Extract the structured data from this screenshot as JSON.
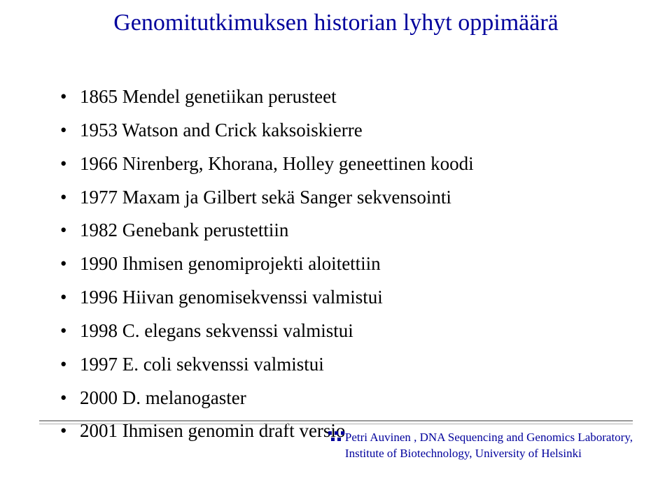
{
  "title": "Genomitutkimuksen historian lyhyt oppimäärä",
  "bullets": [
    "1865 Mendel genetiikan perusteet",
    "1953 Watson and Crick kaksoiskierre",
    "1966 Nirenberg, Khorana, Holley geneettinen koodi",
    "1977 Maxam ja Gilbert sekä Sanger sekvensointi",
    "1982 Genebank perustettiin",
    "1990 Ihmisen genomiprojekti aloitettiin",
    "1996 Hiivan genomisekvenssi valmistui",
    "1998 C. elegans sekvenssi valmistui",
    "1997 E. coli sekvenssi valmistui",
    "2000 D. melanogaster",
    "2001 Ihmisen genomin draft versio"
  ],
  "footer": {
    "line1": "Petri Auvinen , DNA Sequencing and Genomics Laboratory,",
    "line2": "Institute of Biotechnology, University of Helsinki"
  },
  "colors": {
    "title_color": "#00009c",
    "text_color": "#000000",
    "footer_color": "#00009c",
    "rule_color": "#9a9a9a",
    "dot_color": "#00009c",
    "background": "#ffffff"
  },
  "typography": {
    "title_fontsize": 34,
    "bullet_fontsize": 27,
    "footer_fontsize": 17,
    "font_family": "Times New Roman"
  }
}
